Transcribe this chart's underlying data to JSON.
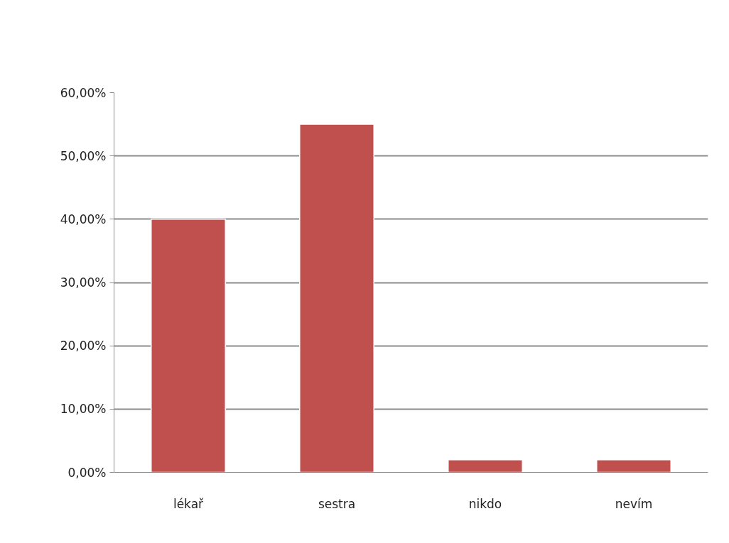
{
  "chart_data": {
    "type": "bar",
    "categories": [
      "lékař",
      "sestra",
      "nikdo",
      "nevím"
    ],
    "values": [
      40,
      55,
      2,
      2
    ],
    "color": "#c0504d",
    "ylim": [
      0,
      60
    ],
    "yticks": [
      {
        "value": 0,
        "label": "0,00%"
      },
      {
        "value": 10,
        "label": "10,00%"
      },
      {
        "value": 20,
        "label": "20,00%"
      },
      {
        "value": 30,
        "label": "30,00%"
      },
      {
        "value": 40,
        "label": "40,00%"
      },
      {
        "value": 50,
        "label": "50,00%"
      },
      {
        "value": 60,
        "label": "60,00%"
      }
    ],
    "grid": "y"
  }
}
